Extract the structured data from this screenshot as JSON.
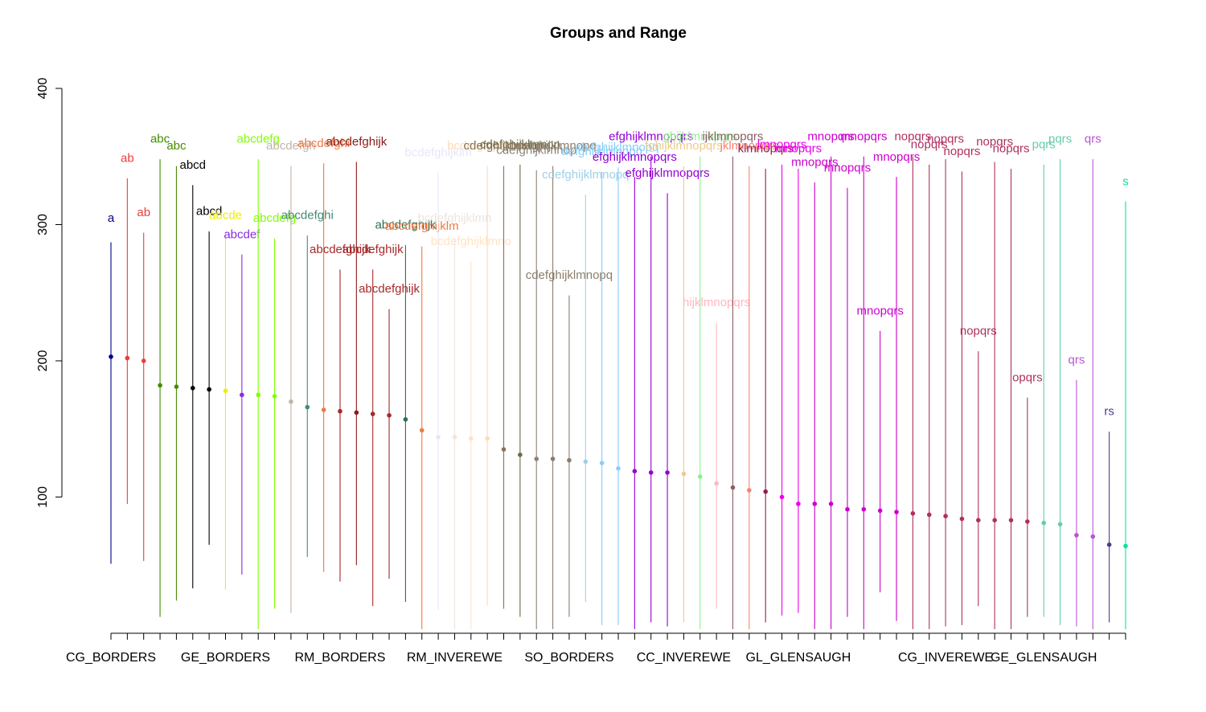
{
  "chart_data": {
    "type": "scatter",
    "title": "Groups and Range",
    "xlabel": "",
    "ylabel": "",
    "ylim": [
      0,
      400
    ],
    "yticks": [
      100,
      200,
      300,
      400
    ],
    "x_tick_labels": [
      "CG_BORDERS",
      "GE_BORDERS",
      "RM_BORDERS",
      "RM_INVEREWE",
      "SO_BORDERS",
      "CC_INVEREWE",
      "GL_GLENSAUGH",
      "CG_INVEREWE",
      "GE_GLENSAUGH"
    ],
    "x_tick_positions": [
      1,
      8,
      15,
      22,
      29,
      36,
      43,
      52,
      58
    ],
    "grid": false,
    "groups": [
      {
        "mean": 203,
        "min": 51,
        "max": 287,
        "label": "a",
        "label_y": 305,
        "color": "#00008B"
      },
      {
        "mean": 202,
        "min": 95,
        "max": 334,
        "label": "ab",
        "label_y": 349,
        "color": "#EE3B3B"
      },
      {
        "mean": 200,
        "min": 53,
        "max": 294,
        "label": "ab",
        "label_y": 309,
        "color": "#EE3B3B"
      },
      {
        "mean": 182,
        "min": 12,
        "max": 348,
        "label": "abc",
        "label_y": 363,
        "color": "#458B00"
      },
      {
        "mean": 181,
        "min": 24,
        "max": 343,
        "label": "abc",
        "label_y": 358,
        "color": "#458B00"
      },
      {
        "mean": 180,
        "min": 33,
        "max": 329,
        "label": "abcd",
        "label_y": 344,
        "color": "#000000"
      },
      {
        "mean": 179,
        "min": 65,
        "max": 295,
        "label": "abcd",
        "label_y": 310,
        "color": "#000000"
      },
      {
        "mean": 178,
        "min": 32,
        "max": 292,
        "label": "abcde",
        "label_y": 307,
        "color": "#EEEE00"
      },
      {
        "mean": 175,
        "min": 43,
        "max": 278,
        "label": "abcdef",
        "label_y": 293,
        "color": "#8A2BE2"
      },
      {
        "mean": 175,
        "min": 3,
        "max": 348,
        "label": "abcdefg",
        "label_y": 363,
        "color": "#7FFF00"
      },
      {
        "mean": 174,
        "min": 18,
        "max": 290,
        "label": "abcdefg",
        "label_y": 305,
        "color": "#7FFF00"
      },
      {
        "mean": 170,
        "min": 15,
        "max": 343,
        "label": "abcdefgh",
        "label_y": 358,
        "color": "#C1B5A9"
      },
      {
        "mean": 166,
        "min": 56,
        "max": 292,
        "label": "abcdefghi",
        "label_y": 307,
        "color": "#458B74"
      },
      {
        "mean": 164,
        "min": 45,
        "max": 345,
        "label": "abcdefghi",
        "label_y": 360,
        "color": "#EE7942"
      },
      {
        "mean": 163,
        "min": 38,
        "max": 267,
        "label": "abcdefghijk",
        "label_y": 282,
        "color": "#A52A2A"
      },
      {
        "mean": 162,
        "min": 50,
        "max": 346,
        "label": "abcdefghijk",
        "label_y": 361,
        "color": "#8B1A1A"
      },
      {
        "mean": 161,
        "min": 20,
        "max": 267,
        "label": "abcdefghijk",
        "label_y": 282,
        "color": "#A52A2A"
      },
      {
        "mean": 160,
        "min": 40,
        "max": 238,
        "label": "abcdefghijk",
        "label_y": 253,
        "color": "#A52A2A"
      },
      {
        "mean": 157,
        "min": 23,
        "max": 285,
        "label": "abcdefghijk",
        "label_y": 300,
        "color": "#2F6F4F"
      },
      {
        "mean": 149,
        "min": 3,
        "max": 284,
        "label": "abcdefghijklm",
        "label_y": 299,
        "color": "#EE7942"
      },
      {
        "mean": 144,
        "min": 17,
        "max": 338,
        "label": "bcdefghijklm",
        "label_y": 353,
        "color": "#E6E6FA"
      },
      {
        "mean": 144,
        "min": 3,
        "max": 290,
        "label": "bcdefghijklmn",
        "label_y": 305,
        "color": "#EEE5DE"
      },
      {
        "mean": 143,
        "min": 3,
        "max": 273,
        "label": "bcdefghijklmno",
        "label_y": 288,
        "color": "#FFE4C4"
      },
      {
        "mean": 143,
        "min": 20,
        "max": 343,
        "label": "bcdefghijklmno",
        "label_y": 358,
        "color": "#FFDAB9"
      },
      {
        "mean": 135,
        "min": 18,
        "max": 343,
        "label": "cdefghijklmnop",
        "label_y": 358,
        "color": "#8B7355"
      },
      {
        "mean": 131,
        "min": 12,
        "max": 344,
        "label": "cdefghijklmnop",
        "label_y": 359,
        "color": "#6B6B47"
      },
      {
        "mean": 128,
        "min": 3,
        "max": 340,
        "label": "cdefghijklmnop",
        "label_y": 355,
        "color": "#8B8378"
      },
      {
        "mean": 128,
        "min": 3,
        "max": 343,
        "label": "cdefghijklmnopq",
        "label_y": 358,
        "color": "#8B7D6B"
      },
      {
        "mean": 127,
        "min": 12,
        "max": 248,
        "label": "cdefghijklmnopq",
        "label_y": 263,
        "color": "#8B7D6B"
      },
      {
        "mean": 126,
        "min": 23,
        "max": 322,
        "label": "cdefghijklmnopq",
        "label_y": 337,
        "color": "#9FD0E8"
      },
      {
        "mean": 125,
        "min": 6,
        "max": 339,
        "label": "defghijklmnopq",
        "label_y": 354,
        "color": "#87CEFA"
      },
      {
        "mean": 121,
        "min": 6,
        "max": 342,
        "label": "defghijklmnopq",
        "label_y": 357,
        "color": "#87CEFA"
      },
      {
        "mean": 119,
        "min": 3,
        "max": 335,
        "label": "efghijklmnopqrs",
        "label_y": 350,
        "color": "#9400D3"
      },
      {
        "mean": 118,
        "min": 8,
        "max": 350,
        "label": "efghijklmnopqrs",
        "label_y": 365,
        "color": "#9400D3"
      },
      {
        "mean": 118,
        "min": 5,
        "max": 323,
        "label": "efghijklmnopqrs",
        "label_y": 338,
        "color": "#9400D3"
      },
      {
        "mean": 117,
        "min": 8,
        "max": 343,
        "label": "fghijklmnopqrs",
        "label_y": 358,
        "color": "#EECB8B"
      },
      {
        "mean": 115,
        "min": 3,
        "max": 350,
        "label": "ghijklmnopqrs",
        "label_y": 365,
        "color": "#90EE90"
      },
      {
        "mean": 110,
        "min": 18,
        "max": 228,
        "label": "hijklmnopqrs",
        "label_y": 243,
        "color": "#FFB6C1"
      },
      {
        "mean": 107,
        "min": 3,
        "max": 350,
        "label": "ijklmnopqrs",
        "label_y": 365,
        "color": "#8B5F65"
      },
      {
        "mean": 105,
        "min": 3,
        "max": 343,
        "label": "jklmnopqrs",
        "label_y": 358,
        "color": "#FA8072"
      },
      {
        "mean": 104,
        "min": 8,
        "max": 341,
        "label": "klmnopqrs",
        "label_y": 356,
        "color": "#8B2252"
      },
      {
        "mean": 100,
        "min": 13,
        "max": 344,
        "label": "lmnopqrs",
        "label_y": 359,
        "color": "#EE00EE"
      },
      {
        "mean": 95,
        "min": 15,
        "max": 341,
        "label": "mnopqrs",
        "label_y": 356,
        "color": "#EE00EE"
      },
      {
        "mean": 95,
        "min": 3,
        "max": 331,
        "label": "mnopqrs",
        "label_y": 346,
        "color": "#CD00CD"
      },
      {
        "mean": 95,
        "min": 3,
        "max": 350,
        "label": "mnopqrs",
        "label_y": 365,
        "color": "#CD00CD"
      },
      {
        "mean": 91,
        "min": 12,
        "max": 327,
        "label": "mnopqrs",
        "label_y": 342,
        "color": "#CD00CD"
      },
      {
        "mean": 91,
        "min": 3,
        "max": 350,
        "label": "mnopqrs",
        "label_y": 365,
        "color": "#CD00CD"
      },
      {
        "mean": 90,
        "min": 30,
        "max": 222,
        "label": "mnopqrs",
        "label_y": 237,
        "color": "#CD00CD"
      },
      {
        "mean": 89,
        "min": 9,
        "max": 335,
        "label": "mnopqrs",
        "label_y": 350,
        "color": "#CD00CD"
      },
      {
        "mean": 88,
        "min": 3,
        "max": 350,
        "label": "nopqrs",
        "label_y": 365,
        "color": "#B03060"
      },
      {
        "mean": 87,
        "min": 3,
        "max": 344,
        "label": "nopqrs",
        "label_y": 359,
        "color": "#B03060"
      },
      {
        "mean": 86,
        "min": 5,
        "max": 348,
        "label": "nopqrs",
        "label_y": 363,
        "color": "#B03060"
      },
      {
        "mean": 84,
        "min": 6,
        "max": 339,
        "label": "nopqrs",
        "label_y": 354,
        "color": "#B03060"
      },
      {
        "mean": 83,
        "min": 20,
        "max": 207,
        "label": "nopqrs",
        "label_y": 222,
        "color": "#B03060"
      },
      {
        "mean": 83,
        "min": 3,
        "max": 346,
        "label": "nopqrs",
        "label_y": 361,
        "color": "#B03060"
      },
      {
        "mean": 83,
        "min": 3,
        "max": 341,
        "label": "nopqrs",
        "label_y": 356,
        "color": "#B03060"
      },
      {
        "mean": 82,
        "min": 12,
        "max": 173,
        "label": "opqrs",
        "label_y": 188,
        "color": "#B03060"
      },
      {
        "mean": 81,
        "min": 12,
        "max": 344,
        "label": "pqrs",
        "label_y": 359,
        "color": "#66CDAA"
      },
      {
        "mean": 80,
        "min": 6,
        "max": 348,
        "label": "pqrs",
        "label_y": 363,
        "color": "#66CDAA"
      },
      {
        "mean": 72,
        "min": 5,
        "max": 186,
        "label": "qrs",
        "label_y": 201,
        "color": "#BA55D3"
      },
      {
        "mean": 71,
        "min": 3,
        "max": 348,
        "label": "qrs",
        "label_y": 363,
        "color": "#BA55D3"
      },
      {
        "mean": 65,
        "min": 8,
        "max": 148,
        "label": "rs",
        "label_y": 163,
        "color": "#483D8B"
      },
      {
        "mean": 64,
        "min": 3,
        "max": 317,
        "label": "s",
        "label_y": 332,
        "color": "#00E5A0"
      }
    ]
  }
}
